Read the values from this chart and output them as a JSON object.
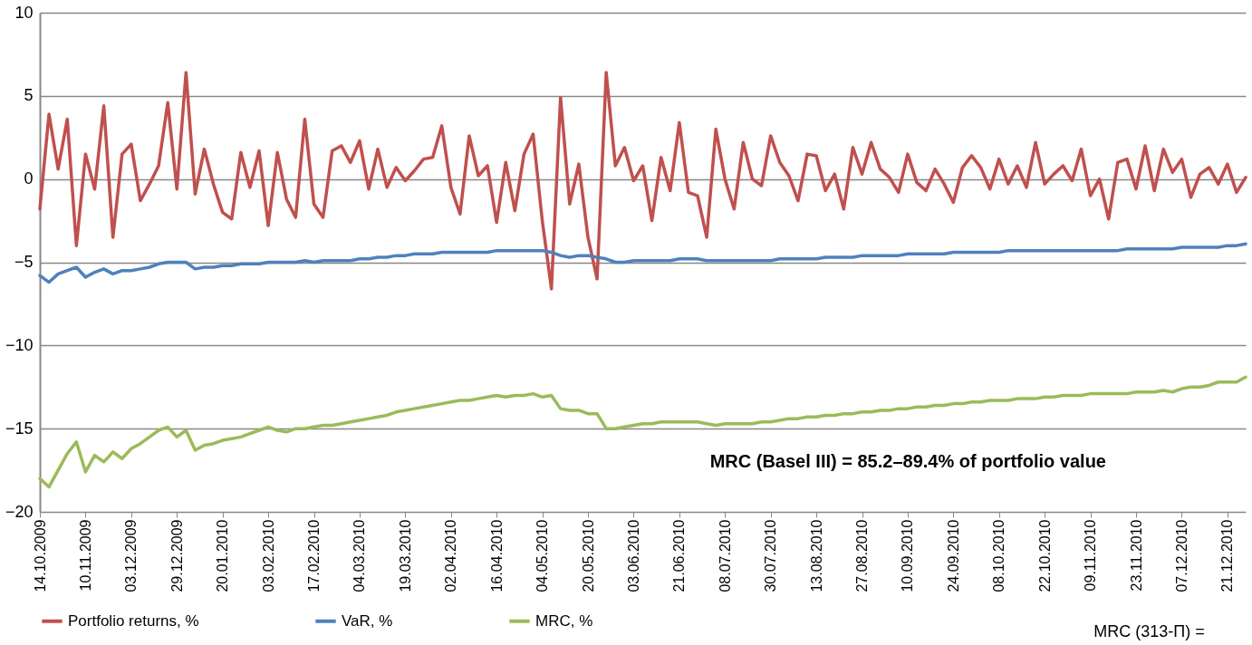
{
  "chart_data": {
    "type": "line",
    "categories": [
      "14.10.2009",
      null,
      null,
      null,
      null,
      "10.11.2009",
      null,
      null,
      null,
      null,
      "03.12.2009",
      null,
      null,
      null,
      null,
      "29.12.2009",
      null,
      null,
      null,
      null,
      "20.01.2010",
      null,
      null,
      null,
      null,
      "03.02.2010",
      null,
      null,
      null,
      null,
      "17.02.2010",
      null,
      null,
      null,
      null,
      "04.03.2010",
      null,
      null,
      null,
      null,
      "19.03.2010",
      null,
      null,
      null,
      null,
      "02.04.2010",
      null,
      null,
      null,
      null,
      "16.04.2010",
      null,
      null,
      null,
      null,
      "04.05.2010",
      null,
      null,
      null,
      null,
      "20.05.2010",
      null,
      null,
      null,
      null,
      "03.06.2010",
      null,
      null,
      null,
      null,
      "21.06.2010",
      null,
      null,
      null,
      null,
      "08.07.2010",
      null,
      null,
      null,
      null,
      "30.07.2010",
      null,
      null,
      null,
      null,
      "13.08.2010",
      null,
      null,
      null,
      null,
      "27.08.2010",
      null,
      null,
      null,
      null,
      "10.09.2010",
      null,
      null,
      null,
      null,
      "24.09.2010",
      null,
      null,
      null,
      null,
      "08.10.2010",
      null,
      null,
      null,
      null,
      "22.10.2010",
      null,
      null,
      null,
      null,
      "09.11.2010",
      null,
      null,
      null,
      null,
      "23.11.2010",
      null,
      null,
      null,
      null,
      "07.12.2010",
      null,
      null,
      null,
      null,
      "21.12.2010",
      null,
      null
    ],
    "series": [
      {
        "name": "Portfolio returns, %",
        "color": "#c0504d",
        "values": [
          -1.8,
          3.9,
          0.6,
          3.6,
          -4.0,
          1.5,
          -0.6,
          4.4,
          -3.5,
          1.5,
          2.1,
          -1.3,
          -0.3,
          0.8,
          4.6,
          -0.6,
          6.4,
          -0.9,
          1.8,
          -0.3,
          -2.0,
          -2.4,
          1.6,
          -0.5,
          1.7,
          -2.8,
          1.6,
          -1.2,
          -2.3,
          3.6,
          -1.5,
          -2.3,
          1.7,
          2.0,
          1.0,
          2.3,
          -0.6,
          1.8,
          -0.5,
          0.7,
          -0.1,
          0.5,
          1.2,
          1.3,
          3.2,
          -0.5,
          -2.1,
          2.6,
          0.2,
          0.8,
          -2.6,
          1.0,
          -1.9,
          1.5,
          2.7,
          -2.5,
          -6.6,
          4.9,
          -1.5,
          0.9,
          -3.5,
          -6.0,
          6.4,
          0.8,
          1.9,
          -0.1,
          0.8,
          -2.5,
          1.3,
          -0.7,
          3.4,
          -0.8,
          -1.0,
          -3.5,
          3.0,
          0.0,
          -1.8,
          2.2,
          0.0,
          -0.4,
          2.6,
          1.0,
          0.2,
          -1.3,
          1.5,
          1.4,
          -0.7,
          0.3,
          -1.8,
          1.9,
          0.3,
          2.2,
          0.6,
          0.1,
          -0.8,
          1.5,
          -0.2,
          -0.7,
          0.6,
          -0.3,
          -1.4,
          0.7,
          1.4,
          0.7,
          -0.6,
          1.2,
          -0.3,
          0.8,
          -0.5,
          2.2,
          -0.3,
          0.3,
          0.8,
          -0.1,
          1.8,
          -1.0,
          0.0,
          -2.4,
          1.0,
          1.2,
          -0.6,
          2.0,
          -0.7,
          1.8,
          0.4,
          1.2,
          -1.1,
          0.3,
          0.7,
          -0.3,
          0.9,
          -0.8,
          0.1
        ]
      },
      {
        "name": "VaR, %",
        "color": "#4f81bd",
        "values": [
          -5.8,
          -6.2,
          -5.7,
          -5.5,
          -5.3,
          -5.9,
          -5.6,
          -5.4,
          -5.7,
          -5.5,
          -5.5,
          -5.4,
          -5.3,
          -5.1,
          -5.0,
          -5.0,
          -5.0,
          -5.4,
          -5.3,
          -5.3,
          -5.2,
          -5.2,
          -5.1,
          -5.1,
          -5.1,
          -5.0,
          -5.0,
          -5.0,
          -5.0,
          -4.9,
          -5.0,
          -4.9,
          -4.9,
          -4.9,
          -4.9,
          -4.8,
          -4.8,
          -4.7,
          -4.7,
          -4.6,
          -4.6,
          -4.5,
          -4.5,
          -4.5,
          -4.4,
          -4.4,
          -4.4,
          -4.4,
          -4.4,
          -4.4,
          -4.3,
          -4.3,
          -4.3,
          -4.3,
          -4.3,
          -4.3,
          -4.4,
          -4.6,
          -4.7,
          -4.6,
          -4.6,
          -4.7,
          -4.8,
          -5.0,
          -5.0,
          -4.9,
          -4.9,
          -4.9,
          -4.9,
          -4.9,
          -4.8,
          -4.8,
          -4.8,
          -4.9,
          -4.9,
          -4.9,
          -4.9,
          -4.9,
          -4.9,
          -4.9,
          -4.9,
          -4.8,
          -4.8,
          -4.8,
          -4.8,
          -4.8,
          -4.7,
          -4.7,
          -4.7,
          -4.7,
          -4.6,
          -4.6,
          -4.6,
          -4.6,
          -4.6,
          -4.5,
          -4.5,
          -4.5,
          -4.5,
          -4.5,
          -4.4,
          -4.4,
          -4.4,
          -4.4,
          -4.4,
          -4.4,
          -4.3,
          -4.3,
          -4.3,
          -4.3,
          -4.3,
          -4.3,
          -4.3,
          -4.3,
          -4.3,
          -4.3,
          -4.3,
          -4.3,
          -4.3,
          -4.2,
          -4.2,
          -4.2,
          -4.2,
          -4.2,
          -4.2,
          -4.1,
          -4.1,
          -4.1,
          -4.1,
          -4.1,
          -4.0,
          -4.0,
          -3.9
        ]
      },
      {
        "name": "MRC, %",
        "color": "#9bbb59",
        "values": [
          -18.0,
          -18.5,
          -17.5,
          -16.5,
          -15.8,
          -17.6,
          -16.6,
          -17.0,
          -16.4,
          -16.8,
          -16.2,
          -15.9,
          -15.5,
          -15.1,
          -14.9,
          -15.5,
          -15.1,
          -16.3,
          -16.0,
          -15.9,
          -15.7,
          -15.6,
          -15.5,
          -15.3,
          -15.1,
          -14.9,
          -15.1,
          -15.2,
          -15.0,
          -15.0,
          -14.9,
          -14.8,
          -14.8,
          -14.7,
          -14.6,
          -14.5,
          -14.4,
          -14.3,
          -14.2,
          -14.0,
          -13.9,
          -13.8,
          -13.7,
          -13.6,
          -13.5,
          -13.4,
          -13.3,
          -13.3,
          -13.2,
          -13.1,
          -13.0,
          -13.1,
          -13.0,
          -13.0,
          -12.9,
          -13.1,
          -13.0,
          -13.8,
          -13.9,
          -13.9,
          -14.1,
          -14.1,
          -15.0,
          -15.0,
          -14.9,
          -14.8,
          -14.7,
          -14.7,
          -14.6,
          -14.6,
          -14.6,
          -14.6,
          -14.6,
          -14.7,
          -14.8,
          -14.7,
          -14.7,
          -14.7,
          -14.7,
          -14.6,
          -14.6,
          -14.5,
          -14.4,
          -14.4,
          -14.3,
          -14.3,
          -14.2,
          -14.2,
          -14.1,
          -14.1,
          -14.0,
          -14.0,
          -13.9,
          -13.9,
          -13.8,
          -13.8,
          -13.7,
          -13.7,
          -13.6,
          -13.6,
          -13.5,
          -13.5,
          -13.4,
          -13.4,
          -13.3,
          -13.3,
          -13.3,
          -13.2,
          -13.2,
          -13.2,
          -13.1,
          -13.1,
          -13.0,
          -13.0,
          -13.0,
          -12.9,
          -12.9,
          -12.9,
          -12.9,
          -12.9,
          -12.8,
          -12.8,
          -12.8,
          -12.7,
          -12.8,
          -12.6,
          -12.5,
          -12.5,
          -12.4,
          -12.2,
          -12.2,
          -12.2,
          -11.9
        ]
      }
    ],
    "ylim": [
      -20,
      10
    ],
    "yticks": [
      -20,
      -15,
      -10,
      -5,
      0,
      5,
      10
    ],
    "grid": "y",
    "legend": "bottom",
    "annotations": [
      "MRC (Basel III) = 85.2–89.4% of portfolio value",
      "MRC (313-П) ="
    ]
  }
}
